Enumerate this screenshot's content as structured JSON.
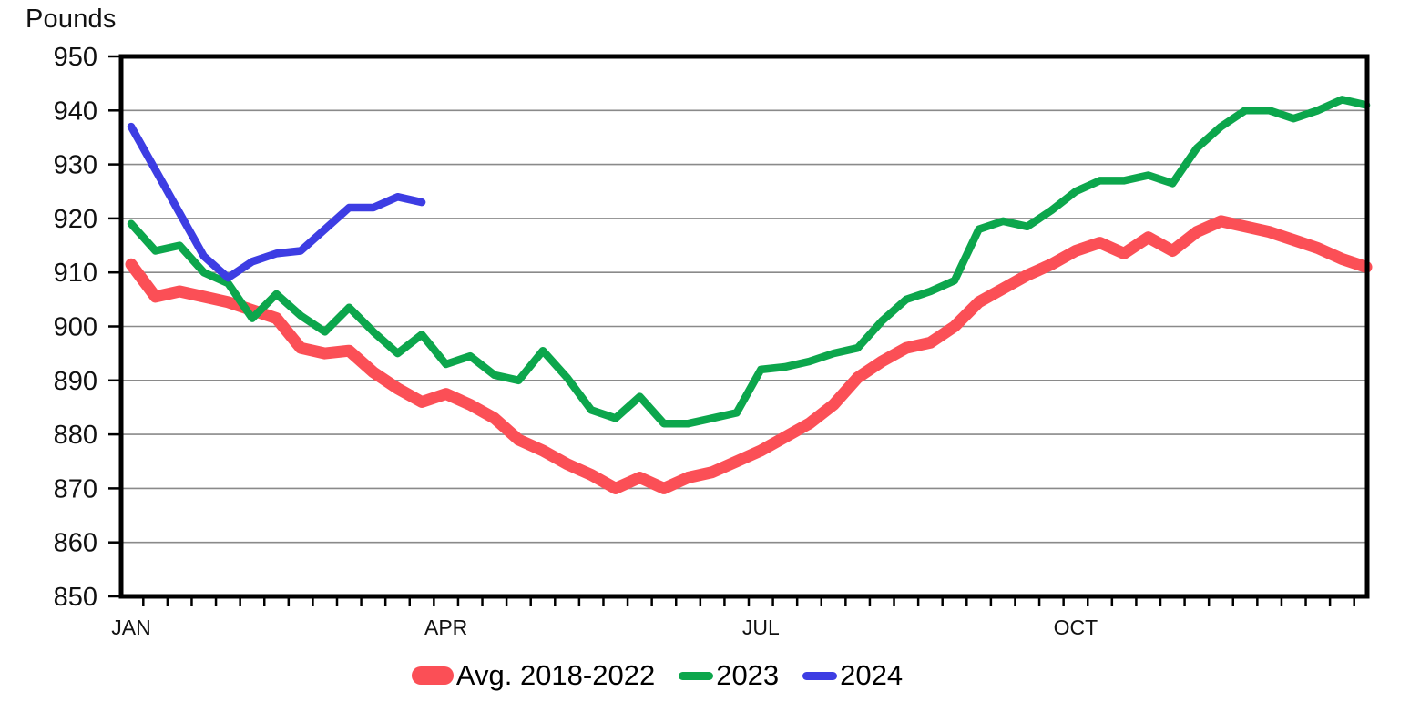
{
  "chart_data": {
    "type": "line",
    "title": "Pounds",
    "y_axis": {
      "label": "Pounds",
      "min": 850,
      "max": 950,
      "tick_step": 10,
      "tick_labels": [
        "850",
        "860",
        "870",
        "880",
        "890",
        "900",
        "910",
        "920",
        "930",
        "940",
        "950"
      ]
    },
    "x_axis": {
      "weeks": 52,
      "month_labels": [
        {
          "label": "JAN",
          "week": 1
        },
        {
          "label": "APR",
          "week": 14
        },
        {
          "label": "JUL",
          "week": 27
        },
        {
          "label": "OCT",
          "week": 40
        }
      ]
    },
    "grid_color": "#8a8a8a",
    "axis_color": "#000000",
    "series": [
      {
        "name": "Avg. 2018-2022",
        "color": "#FB4F56",
        "line_width": 13,
        "values": [
          911.5,
          905.5,
          906.5,
          905.5,
          904.5,
          903,
          901.5,
          896,
          895,
          895.5,
          891.5,
          888.5,
          886,
          887.5,
          885.5,
          883,
          879,
          877,
          874.5,
          872.5,
          870,
          872,
          870,
          872,
          873,
          875,
          877,
          879.5,
          882,
          885.5,
          890.5,
          893.5,
          896,
          897,
          900,
          904.5,
          907,
          909.5,
          911.5,
          914,
          915.5,
          913.5,
          916.5,
          914,
          917.5,
          919.5,
          918.5,
          917.5,
          916,
          914.5,
          912.5,
          911
        ]
      },
      {
        "name": "2023",
        "color": "#0CA64C",
        "line_width": 8.5,
        "values": [
          919,
          914,
          915,
          910,
          908,
          901.5,
          906,
          902,
          899,
          903.5,
          899,
          895,
          898.5,
          893,
          894.5,
          891,
          890,
          895.5,
          890.5,
          884.5,
          883,
          887,
          882,
          882,
          883,
          884,
          892,
          892.5,
          893.5,
          895,
          896,
          901,
          905,
          906.5,
          908.5,
          918,
          919.5,
          918.5,
          921.5,
          925,
          927,
          927,
          928,
          926.5,
          933,
          937,
          940,
          940,
          938.5,
          940,
          942,
          941
        ]
      },
      {
        "name": "2024",
        "color": "#3D3DE3",
        "line_width": 8.5,
        "values": [
          937,
          929,
          921,
          913,
          909,
          912,
          913.5,
          914,
          918,
          922,
          922,
          924,
          923
        ]
      }
    ],
    "legend": {
      "items": [
        "Avg. 2018-2022",
        "2023",
        "2024"
      ]
    }
  }
}
